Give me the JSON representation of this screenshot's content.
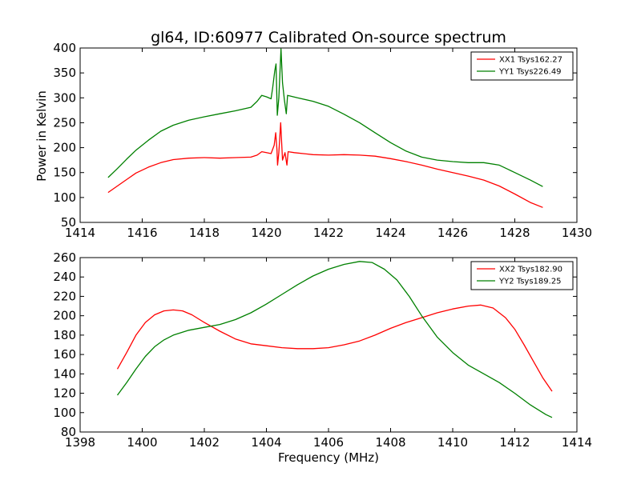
{
  "figure": {
    "title": "gl64, ID:60977 Calibrated On-source spectrum",
    "ylabel": "Power in Kelvin",
    "xlabel": "Frequency (MHz)"
  },
  "chart_data": [
    {
      "type": "line",
      "xlim": [
        1414,
        1430
      ],
      "ylim": [
        50,
        400
      ],
      "xticks": [
        1414,
        1416,
        1418,
        1420,
        1422,
        1424,
        1426,
        1428,
        1430
      ],
      "yticks": [
        50,
        100,
        150,
        200,
        250,
        300,
        350,
        400
      ],
      "grid": false,
      "legend_position": "top-right",
      "series": [
        {
          "name": "XX1 Tsys162.27",
          "color": "#ff0000",
          "points": [
            [
              1414.9,
              110
            ],
            [
              1415.2,
              123
            ],
            [
              1415.5,
              136
            ],
            [
              1415.8,
              149
            ],
            [
              1416.2,
              161
            ],
            [
              1416.6,
              170
            ],
            [
              1417.0,
              176
            ],
            [
              1417.5,
              179
            ],
            [
              1418.0,
              180
            ],
            [
              1418.5,
              179
            ],
            [
              1419.0,
              180
            ],
            [
              1419.5,
              181
            ],
            [
              1419.7,
              185
            ],
            [
              1419.85,
              192
            ],
            [
              1420.0,
              190
            ],
            [
              1420.15,
              188
            ],
            [
              1420.25,
              205
            ],
            [
              1420.3,
              230
            ],
            [
              1420.34,
              195
            ],
            [
              1420.36,
              165
            ],
            [
              1420.4,
              190
            ],
            [
              1420.46,
              250
            ],
            [
              1420.52,
              175
            ],
            [
              1420.6,
              190
            ],
            [
              1420.66,
              165
            ],
            [
              1420.7,
              192
            ],
            [
              1420.9,
              190
            ],
            [
              1421.5,
              186
            ],
            [
              1422.0,
              185
            ],
            [
              1422.5,
              186
            ],
            [
              1423.0,
              185
            ],
            [
              1423.5,
              183
            ],
            [
              1424.0,
              178
            ],
            [
              1424.5,
              172
            ],
            [
              1425.0,
              165
            ],
            [
              1425.5,
              157
            ],
            [
              1426.0,
              150
            ],
            [
              1426.5,
              143
            ],
            [
              1427.0,
              135
            ],
            [
              1427.5,
              123
            ],
            [
              1428.0,
              107
            ],
            [
              1428.5,
              90
            ],
            [
              1428.9,
              80
            ]
          ]
        },
        {
          "name": "YY1 Tsys226.49",
          "color": "#008000",
          "points": [
            [
              1414.9,
              140
            ],
            [
              1415.2,
              158
            ],
            [
              1415.5,
              177
            ],
            [
              1415.8,
              195
            ],
            [
              1416.2,
              215
            ],
            [
              1416.6,
              233
            ],
            [
              1417.0,
              245
            ],
            [
              1417.5,
              255
            ],
            [
              1418.0,
              262
            ],
            [
              1418.5,
              268
            ],
            [
              1419.0,
              274
            ],
            [
              1419.5,
              281
            ],
            [
              1419.7,
              293
            ],
            [
              1419.85,
              305
            ],
            [
              1420.0,
              302
            ],
            [
              1420.15,
              298
            ],
            [
              1420.2,
              320
            ],
            [
              1420.27,
              355
            ],
            [
              1420.31,
              368
            ],
            [
              1420.35,
              265
            ],
            [
              1420.4,
              300
            ],
            [
              1420.47,
              398
            ],
            [
              1420.52,
              330
            ],
            [
              1420.58,
              295
            ],
            [
              1420.64,
              268
            ],
            [
              1420.68,
              305
            ],
            [
              1421.0,
              300
            ],
            [
              1421.5,
              293
            ],
            [
              1422.0,
              283
            ],
            [
              1422.5,
              267
            ],
            [
              1423.0,
              250
            ],
            [
              1423.5,
              230
            ],
            [
              1424.0,
              210
            ],
            [
              1424.5,
              193
            ],
            [
              1425.0,
              181
            ],
            [
              1425.5,
              175
            ],
            [
              1426.0,
              172
            ],
            [
              1426.5,
              170
            ],
            [
              1427.0,
              170
            ],
            [
              1427.5,
              165
            ],
            [
              1428.0,
              150
            ],
            [
              1428.5,
              135
            ],
            [
              1428.9,
              122
            ]
          ]
        }
      ]
    },
    {
      "type": "line",
      "xlim": [
        1398,
        1414
      ],
      "ylim": [
        80,
        260
      ],
      "xticks": [
        1398,
        1400,
        1402,
        1404,
        1406,
        1408,
        1410,
        1412,
        1414
      ],
      "yticks": [
        80,
        100,
        120,
        140,
        160,
        180,
        200,
        220,
        240,
        260
      ],
      "grid": false,
      "legend_position": "top-right",
      "series": [
        {
          "name": "XX2 Tsys182.90",
          "color": "#ff0000",
          "points": [
            [
              1399.2,
              145
            ],
            [
              1399.5,
              162
            ],
            [
              1399.8,
              180
            ],
            [
              1400.1,
              193
            ],
            [
              1400.4,
              201
            ],
            [
              1400.7,
              205
            ],
            [
              1401.0,
              206
            ],
            [
              1401.3,
              205
            ],
            [
              1401.6,
              201
            ],
            [
              1402.0,
              193
            ],
            [
              1402.5,
              184
            ],
            [
              1403.0,
              176
            ],
            [
              1403.5,
              171
            ],
            [
              1404.0,
              169
            ],
            [
              1404.5,
              167
            ],
            [
              1405.0,
              166
            ],
            [
              1405.5,
              166
            ],
            [
              1406.0,
              167
            ],
            [
              1406.5,
              170
            ],
            [
              1407.0,
              174
            ],
            [
              1407.5,
              180
            ],
            [
              1408.0,
              187
            ],
            [
              1408.5,
              193
            ],
            [
              1409.0,
              198
            ],
            [
              1409.5,
              203
            ],
            [
              1410.0,
              207
            ],
            [
              1410.5,
              210
            ],
            [
              1410.9,
              211
            ],
            [
              1411.3,
              208
            ],
            [
              1411.7,
              198
            ],
            [
              1412.0,
              186
            ],
            [
              1412.3,
              170
            ],
            [
              1412.6,
              153
            ],
            [
              1412.9,
              136
            ],
            [
              1413.2,
              122
            ]
          ]
        },
        {
          "name": "YY2 Tsys189.25",
          "color": "#008000",
          "points": [
            [
              1399.2,
              118
            ],
            [
              1399.5,
              131
            ],
            [
              1399.8,
              145
            ],
            [
              1400.1,
              158
            ],
            [
              1400.4,
              168
            ],
            [
              1400.7,
              175
            ],
            [
              1401.0,
              180
            ],
            [
              1401.5,
              185
            ],
            [
              1402.0,
              188
            ],
            [
              1402.5,
              191
            ],
            [
              1403.0,
              196
            ],
            [
              1403.5,
              203
            ],
            [
              1404.0,
              212
            ],
            [
              1404.5,
              222
            ],
            [
              1405.0,
              232
            ],
            [
              1405.5,
              241
            ],
            [
              1406.0,
              248
            ],
            [
              1406.5,
              253
            ],
            [
              1407.0,
              256
            ],
            [
              1407.4,
              255
            ],
            [
              1407.8,
              248
            ],
            [
              1408.2,
              237
            ],
            [
              1408.6,
              220
            ],
            [
              1409.0,
              200
            ],
            [
              1409.5,
              178
            ],
            [
              1410.0,
              162
            ],
            [
              1410.5,
              149
            ],
            [
              1411.0,
              140
            ],
            [
              1411.5,
              131
            ],
            [
              1412.0,
              120
            ],
            [
              1412.5,
              108
            ],
            [
              1413.0,
              98
            ],
            [
              1413.2,
              95
            ]
          ]
        }
      ]
    }
  ]
}
